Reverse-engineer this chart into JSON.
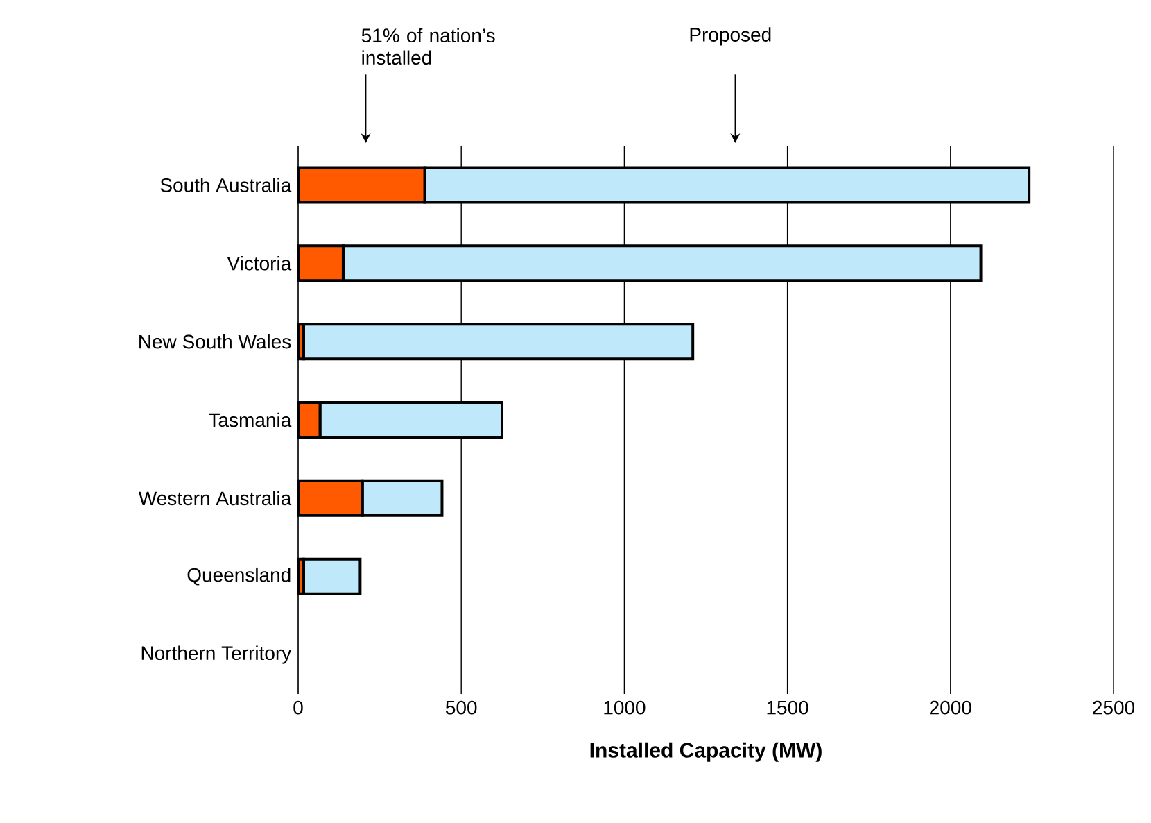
{
  "chart_data": {
    "type": "bar",
    "orientation": "horizontal",
    "stacked": true,
    "xlabel": "Installed Capacity (MW)",
    "categories": [
      "South Australia",
      "Victoria",
      "New South Wales",
      "Tasmania",
      "Western Australia",
      "Queensland",
      "Northern Territory"
    ],
    "series": [
      {
        "color": "#ff5a00",
        "values": [
          388,
          138,
          17,
          67,
          197,
          17,
          null
        ]
      },
      {
        "color": "#bfe9fb",
        "values": [
          1853,
          1955,
          1193,
          558,
          244,
          173,
          null
        ]
      }
    ],
    "xlim": [
      0,
      2500
    ],
    "xticks": [
      0,
      500,
      1000,
      1500,
      2000,
      2500
    ],
    "grid": "x",
    "annotations": [
      "51% of nation’s installed",
      "Proposed"
    ]
  }
}
